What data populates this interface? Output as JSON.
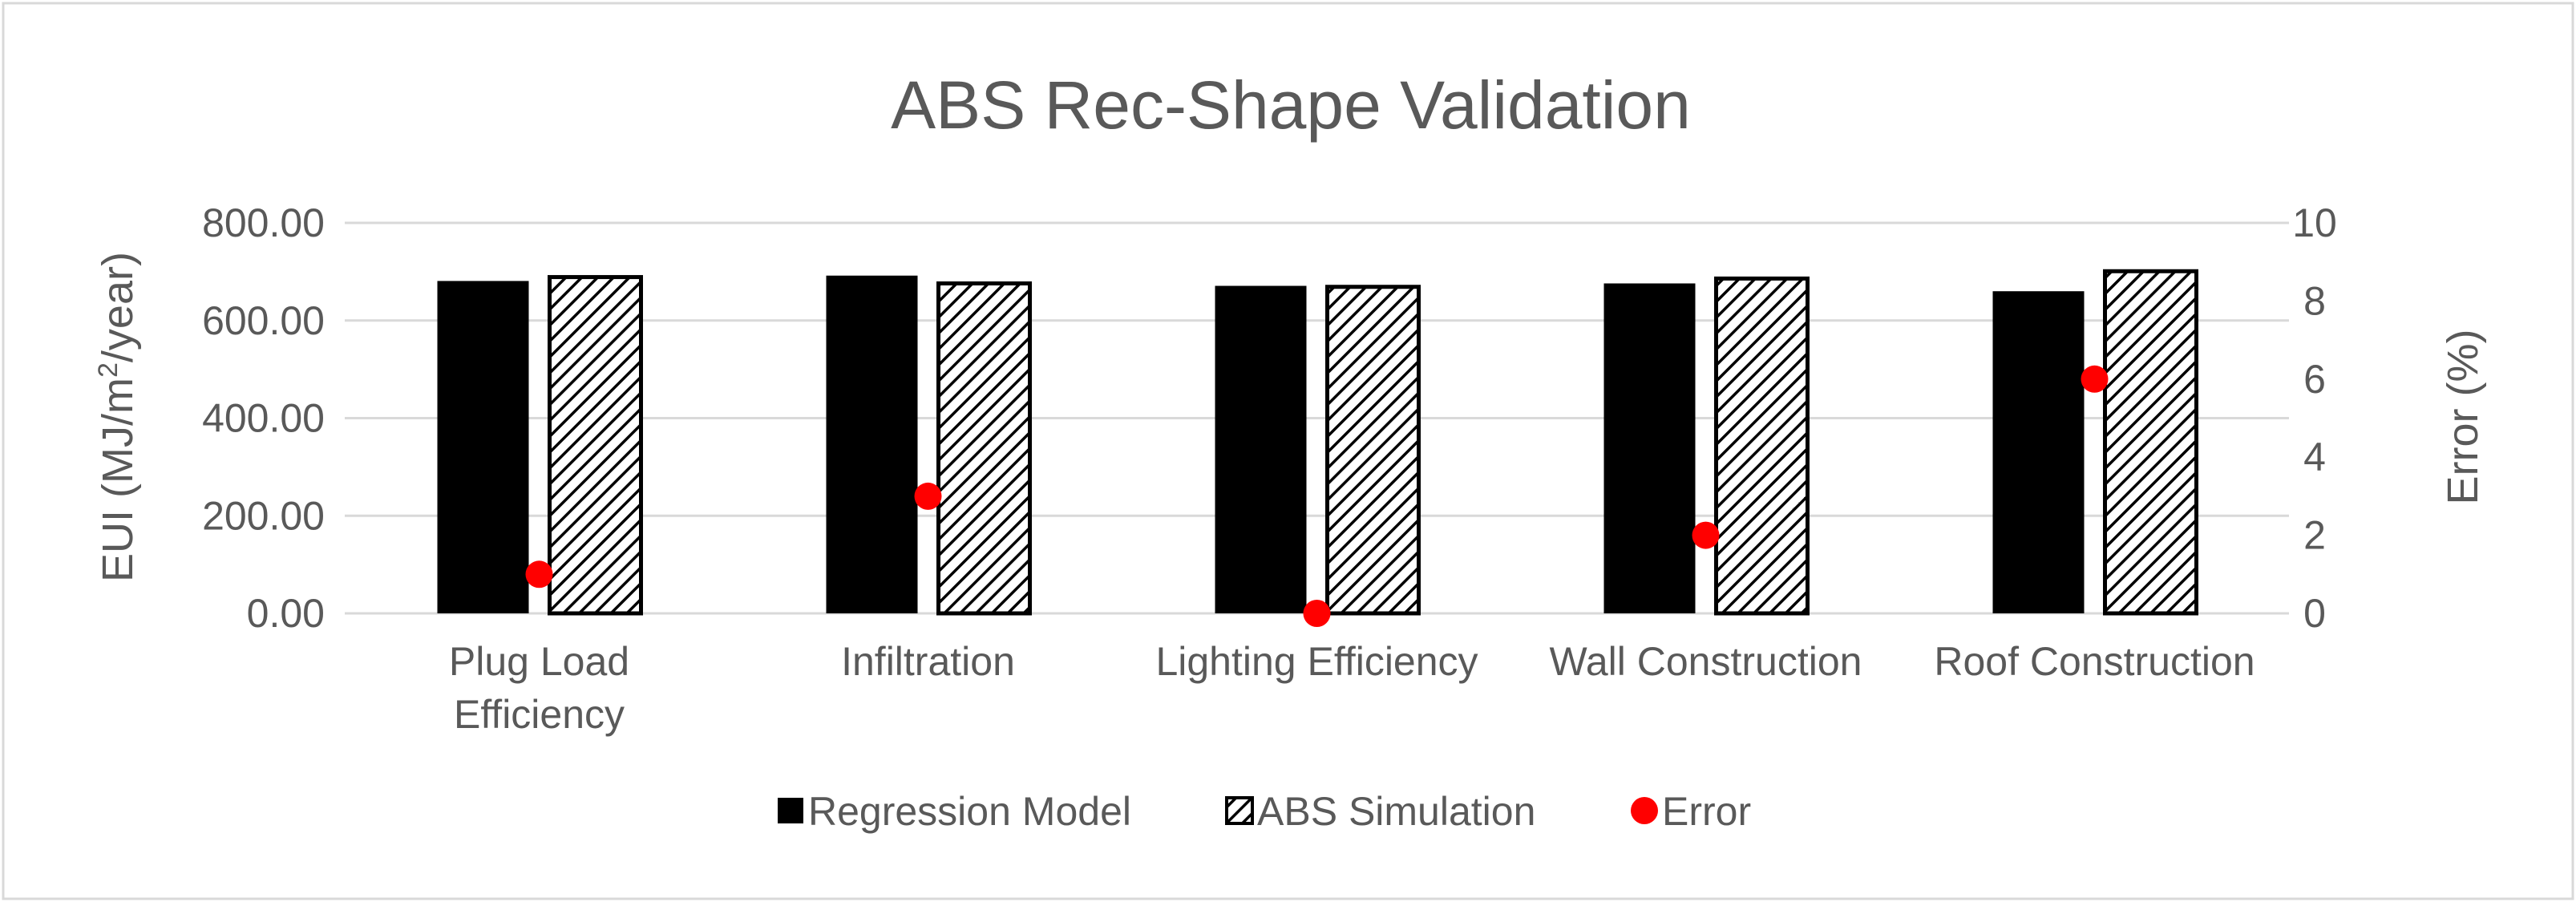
{
  "chart_data": {
    "type": "bar",
    "title": "ABS Rec-Shape Validation",
    "categories": [
      [
        "Plug Load",
        "Efficiency"
      ],
      [
        "Infiltration"
      ],
      [
        "Lighting Efficiency"
      ],
      [
        "Wall Construction"
      ],
      [
        "Roof Construction"
      ]
    ],
    "series": [
      {
        "name": "Regression Model",
        "axis": "left",
        "style": "solid",
        "color": "#000000",
        "values": [
          681,
          692,
          671,
          676,
          660
        ]
      },
      {
        "name": "ABS Simulation",
        "axis": "left",
        "style": "hatch",
        "color": "#000000",
        "values": [
          689,
          676,
          669,
          686,
          701
        ]
      },
      {
        "name": "Error",
        "axis": "right",
        "style": "marker",
        "color": "#ff0000",
        "values": [
          1,
          3,
          0,
          2,
          6
        ]
      }
    ],
    "y_left": {
      "label_main": "EUI (MJ/m",
      "label_sup": "2",
      "label_tail": "/year)",
      "min": 0,
      "max": 800,
      "ticks": [
        "0.00",
        "200.00",
        "400.00",
        "600.00",
        "800.00"
      ]
    },
    "y_right": {
      "label": "Error (%)",
      "min": 0,
      "max": 10,
      "ticks": [
        "0",
        "2",
        "4",
        "6",
        "8",
        "10"
      ]
    },
    "legend_position": "bottom",
    "grid": true
  }
}
